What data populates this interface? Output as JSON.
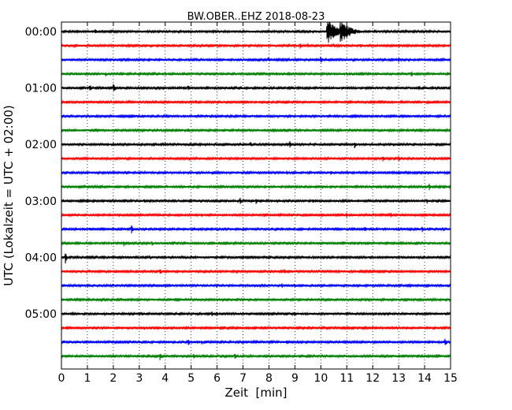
{
  "chart_data": {
    "type": "line",
    "title": "BW.OBER..EHZ 2018-08-23",
    "xlabel": "Zeit  [min]",
    "ylabel": "UTC (Lokalzeit = UTC + 02:00)",
    "xlim": [
      0,
      15
    ],
    "x_ticks": [
      "0",
      "1",
      "2",
      "3",
      "4",
      "5",
      "6",
      "7",
      "8",
      "9",
      "10",
      "11",
      "12",
      "13",
      "14",
      "15"
    ],
    "y_ticks": [
      "00:00",
      "01:00",
      "02:00",
      "03:00",
      "04:00",
      "05:00"
    ],
    "grid": "vertical dotted",
    "trace_interval_min": 15,
    "trace_colors": [
      "#000000",
      "#ff0000",
      "#0000ff",
      "#008000"
    ],
    "series": [
      {
        "start": "00:00",
        "events": [
          [
            10.25,
            1.0
          ],
          [
            10.75,
            1.0
          ],
          [
            1.3,
            0.25
          ],
          [
            4.7,
            0.2
          ],
          [
            2.0,
            0.15
          ]
        ]
      },
      {
        "start": "00:15",
        "events": [
          [
            9.2,
            0.35
          ],
          [
            9.5,
            0.2
          ],
          [
            11.5,
            0.2
          ],
          [
            10.5,
            0.18
          ]
        ]
      },
      {
        "start": "00:30",
        "events": [
          [
            10.0,
            0.35
          ],
          [
            8.0,
            0.2
          ],
          [
            13.0,
            0.25
          ],
          [
            14.0,
            0.15
          ]
        ]
      },
      {
        "start": "00:45",
        "events": [
          [
            1.7,
            0.25
          ],
          [
            4.0,
            0.2
          ],
          [
            8.3,
            0.2
          ],
          [
            13.5,
            0.25
          ]
        ]
      },
      {
        "start": "01:00",
        "events": [
          [
            1.1,
            0.3
          ],
          [
            2.0,
            0.45
          ],
          [
            4.9,
            0.2
          ],
          [
            3.6,
            0.15
          ],
          [
            13.8,
            0.2
          ]
        ]
      },
      {
        "start": "01:15",
        "events": [
          [
            5.2,
            0.2
          ],
          [
            1.0,
            0.12
          ],
          [
            10.8,
            0.12
          ]
        ]
      },
      {
        "start": "01:30",
        "events": [
          [
            4.5,
            0.15
          ],
          [
            9.6,
            0.15
          ],
          [
            12.5,
            0.1
          ]
        ]
      },
      {
        "start": "01:45",
        "events": [
          [
            4.9,
            0.2
          ],
          [
            8.6,
            0.2
          ],
          [
            12.2,
            0.15
          ]
        ]
      },
      {
        "start": "02:00",
        "events": [
          [
            8.8,
            0.3
          ],
          [
            11.3,
            0.3
          ],
          [
            7.3,
            0.2
          ],
          [
            12.8,
            0.2
          ],
          [
            1.8,
            0.15
          ]
        ]
      },
      {
        "start": "02:15",
        "events": [
          [
            12.4,
            0.25
          ],
          [
            13.0,
            0.2
          ],
          [
            1.7,
            0.12
          ]
        ]
      },
      {
        "start": "02:30",
        "events": [
          [
            8.0,
            0.2
          ],
          [
            8.7,
            0.2
          ],
          [
            10.4,
            0.2
          ],
          [
            2.5,
            0.12
          ]
        ]
      },
      {
        "start": "02:45",
        "events": [
          [
            14.2,
            0.3
          ],
          [
            8.0,
            0.12
          ],
          [
            12.3,
            0.12
          ]
        ]
      },
      {
        "start": "03:00",
        "events": [
          [
            6.9,
            0.25
          ],
          [
            7.5,
            0.25
          ],
          [
            14.1,
            0.2
          ],
          [
            9.7,
            0.15
          ],
          [
            3.2,
            0.15
          ]
        ]
      },
      {
        "start": "03:15",
        "events": [
          [
            5.4,
            0.2
          ],
          [
            7.8,
            0.2
          ],
          [
            11.0,
            0.2
          ],
          [
            12.7,
            0.2
          ],
          [
            9.2,
            0.15
          ]
        ]
      },
      {
        "start": "03:30",
        "events": [
          [
            2.7,
            0.4
          ],
          [
            11.7,
            0.3
          ],
          [
            13.9,
            0.3
          ],
          [
            1.1,
            0.15
          ],
          [
            6.0,
            0.15
          ]
        ]
      },
      {
        "start": "03:45",
        "events": [
          [
            2.4,
            0.25
          ],
          [
            3.5,
            0.2
          ],
          [
            8.8,
            0.12
          ]
        ]
      },
      {
        "start": "04:00",
        "events": [
          [
            0.15,
            0.5
          ],
          [
            3.4,
            0.2
          ],
          [
            12.9,
            0.15
          ]
        ]
      },
      {
        "start": "04:15",
        "events": [
          [
            3.8,
            0.3
          ],
          [
            8.6,
            0.25
          ],
          [
            1.1,
            0.15
          ],
          [
            13.0,
            0.12
          ]
        ]
      },
      {
        "start": "04:30",
        "events": [
          [
            8.5,
            0.2
          ],
          [
            9.0,
            0.15
          ],
          [
            14.5,
            0.12
          ]
        ]
      },
      {
        "start": "04:45",
        "events": [
          [
            6.0,
            0.12
          ],
          [
            11.0,
            0.1
          ]
        ]
      },
      {
        "start": "05:00",
        "events": [
          [
            5.8,
            0.18
          ],
          [
            9.0,
            0.18
          ],
          [
            10.7,
            0.15
          ],
          [
            3.1,
            0.12
          ]
        ]
      },
      {
        "start": "05:15",
        "events": [
          [
            3.2,
            0.15
          ],
          [
            8.4,
            0.15
          ],
          [
            12.0,
            0.12
          ]
        ]
      },
      {
        "start": "05:30",
        "events": [
          [
            4.9,
            0.25
          ],
          [
            5.4,
            0.2
          ],
          [
            14.8,
            0.3
          ],
          [
            8.7,
            0.15
          ]
        ]
      },
      {
        "start": "05:45",
        "events": [
          [
            3.8,
            0.35
          ],
          [
            2.3,
            0.2
          ],
          [
            5.1,
            0.2
          ],
          [
            6.7,
            0.2
          ],
          [
            0.3,
            0.15
          ]
        ]
      }
    ]
  }
}
